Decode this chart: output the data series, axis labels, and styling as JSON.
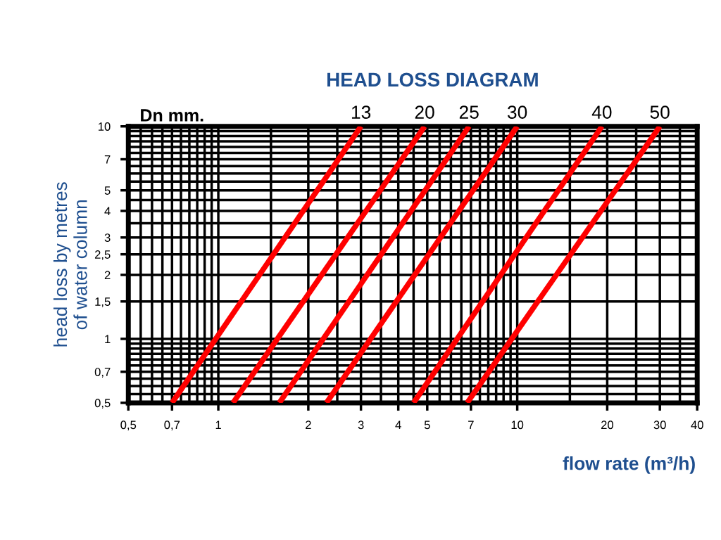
{
  "chart_data": {
    "type": "line",
    "title": "HEAD LOSS DIAGRAM",
    "legend_title": "Dn mm.",
    "xlabel": "flow rate (m³/h)",
    "ylabel": "head loss by metres\nof water column",
    "log": "xy",
    "grid": true,
    "legend": false,
    "line_style": "solid",
    "marker": "none",
    "xlim": [
      0.5,
      40
    ],
    "ylim": [
      0.5,
      10
    ],
    "xticks": [
      {
        "value": 0.5,
        "label": "0,5"
      },
      {
        "value": 0.55,
        "label": null
      },
      {
        "value": 0.6,
        "label": null
      },
      {
        "value": 0.65,
        "label": null
      },
      {
        "value": 0.7,
        "label": "0,7"
      },
      {
        "value": 0.75,
        "label": null
      },
      {
        "value": 0.8,
        "label": null
      },
      {
        "value": 0.85,
        "label": null
      },
      {
        "value": 0.9,
        "label": null
      },
      {
        "value": 0.95,
        "label": null
      },
      1,
      {
        "value": 1.5,
        "label": null
      },
      2,
      {
        "value": 2.5,
        "label": null
      },
      3,
      {
        "value": 3.5,
        "label": null
      },
      4,
      {
        "value": 4.5,
        "label": null
      },
      5,
      {
        "value": 5.5,
        "label": null
      },
      {
        "value": 6,
        "label": null
      },
      {
        "value": 6.5,
        "label": null
      },
      7,
      {
        "value": 7.5,
        "label": null
      },
      {
        "value": 8,
        "label": null
      },
      {
        "value": 8.5,
        "label": null
      },
      {
        "value": 9,
        "label": null
      },
      {
        "value": 9.5,
        "label": null
      },
      10,
      {
        "value": 15,
        "label": null
      },
      20,
      {
        "value": 25,
        "label": null
      },
      30,
      {
        "value": 35,
        "label": null
      },
      40
    ],
    "yticks": [
      {
        "value": 0.5,
        "label": "0,5"
      },
      {
        "value": 0.55,
        "label": null
      },
      {
        "value": 0.6,
        "label": null
      },
      {
        "value": 0.65,
        "label": null
      },
      {
        "value": 0.7,
        "label": "0,7"
      },
      {
        "value": 0.75,
        "label": null
      },
      {
        "value": 0.8,
        "label": null
      },
      {
        "value": 0.85,
        "label": null
      },
      {
        "value": 0.9,
        "label": null
      },
      {
        "value": 0.95,
        "label": null
      },
      1,
      {
        "value": 1.5,
        "label": "1,5"
      },
      2,
      {
        "value": 2.5,
        "label": "2,5"
      },
      3,
      {
        "value": 3.5,
        "label": null
      },
      4,
      {
        "value": 4.5,
        "label": null
      },
      5,
      {
        "value": 5.5,
        "label": null
      },
      {
        "value": 6,
        "label": null
      },
      {
        "value": 6.5,
        "label": null
      },
      7,
      {
        "value": 7.5,
        "label": null
      },
      {
        "value": 8,
        "label": null
      },
      {
        "value": 8.5,
        "label": null
      },
      {
        "value": 9,
        "label": null
      },
      {
        "value": 9.5,
        "label": null
      },
      10
    ],
    "series": [
      {
        "name": "13",
        "color": "#ff0000",
        "x": [
          0.7,
          3
        ],
        "values": [
          0.5,
          10
        ]
      },
      {
        "name": "20",
        "color": "#ff0000",
        "x": [
          1.12,
          4.9
        ],
        "values": [
          0.5,
          10
        ]
      },
      {
        "name": "25",
        "color": "#ff0000",
        "x": [
          1.6,
          6.9
        ],
        "values": [
          0.5,
          10
        ]
      },
      {
        "name": "30",
        "color": "#ff0000",
        "x": [
          2.3,
          10
        ],
        "values": [
          0.5,
          10
        ]
      },
      {
        "name": "40",
        "color": "#ff0000",
        "x": [
          4.5,
          19.2
        ],
        "values": [
          0.5,
          10
        ]
      },
      {
        "name": "50",
        "color": "#ff0000",
        "x": [
          6.8,
          30
        ],
        "values": [
          0.5,
          10
        ]
      }
    ]
  }
}
